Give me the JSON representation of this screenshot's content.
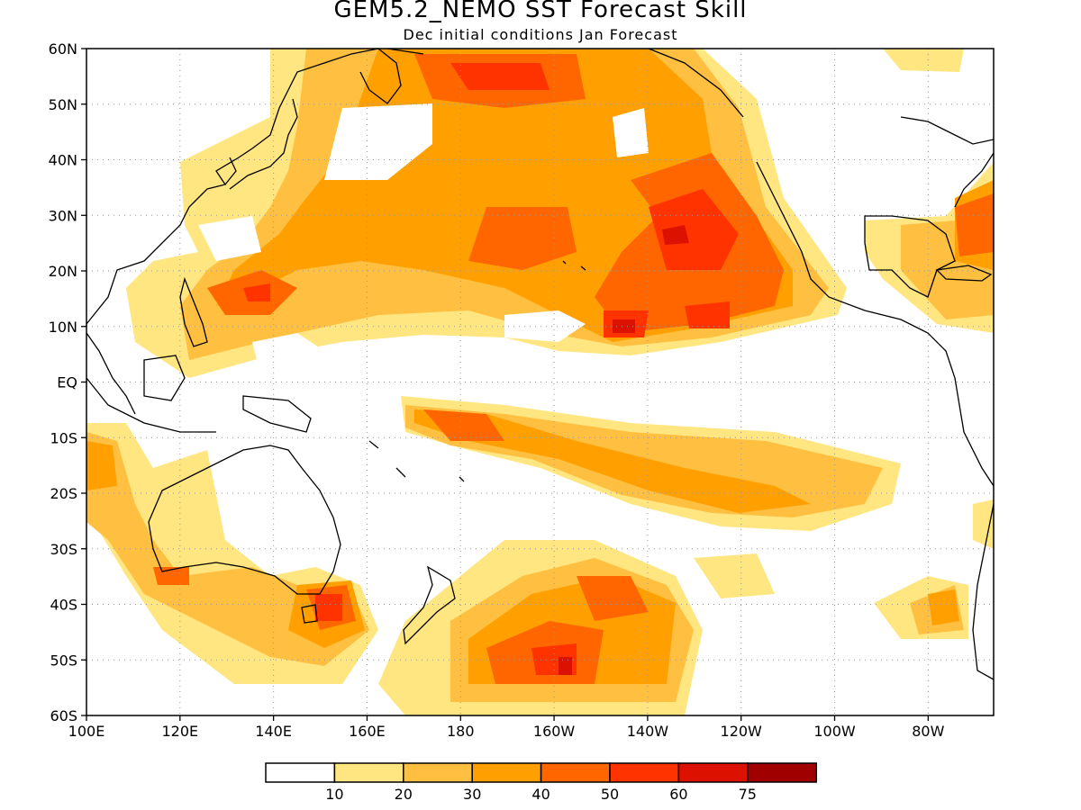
{
  "title": "GEM5.2_NEMO SST Forecast Skill",
  "subtitle": "Dec initial conditions   Jan Forecast",
  "map": {
    "region": "Pacific Ocean basin",
    "lon_range": [
      "100E",
      "70W"
    ],
    "lat_range": [
      "60S",
      "60N"
    ],
    "lat_labels": [
      "60N",
      "50N",
      "40N",
      "30N",
      "20N",
      "10N",
      "EQ",
      "10S",
      "20S",
      "30S",
      "40S",
      "50S",
      "60S"
    ],
    "lon_labels": [
      "100E",
      "120E",
      "140E",
      "160E",
      "180",
      "160W",
      "140W",
      "120W",
      "100W",
      "80W"
    ],
    "grid": "dotted",
    "coastlines": true
  },
  "legend": {
    "labels": [
      "10",
      "20",
      "30",
      "40",
      "50",
      "60",
      "75"
    ],
    "colors": [
      "#ffffff",
      "#ffe680",
      "#ffbf40",
      "#ffa000",
      "#ff6600",
      "#ff3300",
      "#dd1100",
      "#a00000"
    ]
  }
}
